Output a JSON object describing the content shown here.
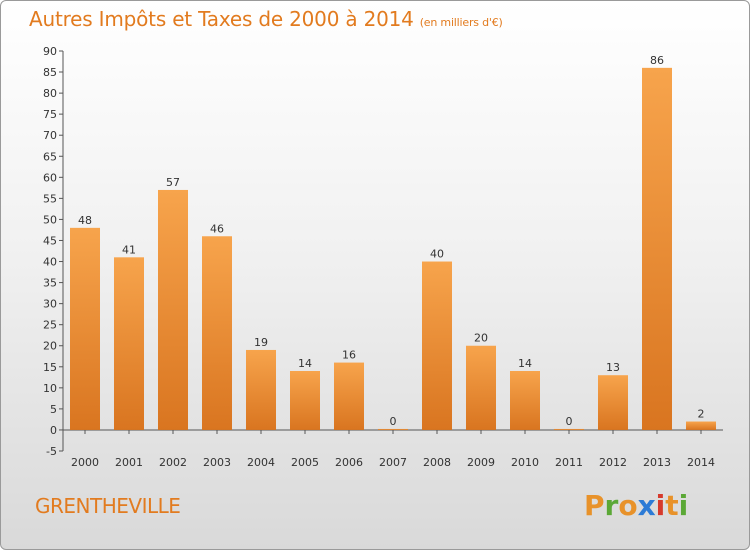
{
  "header": {
    "title": "Autres Impôts et Taxes de 2000 à 2014",
    "subtitle": "(en milliers d'€)"
  },
  "footer": {
    "commune": "GRENTHEVILLE",
    "logo": [
      "P",
      "r",
      "o",
      "x",
      "i",
      "t",
      "i"
    ]
  },
  "colors": {
    "bar_top": "#f7a44c",
    "bar_bottom": "#d97520",
    "accent": "#e27b1f",
    "logo": [
      "#e8922a",
      "#5ba836",
      "#e8922a",
      "#2c7bd6",
      "#d63a2c",
      "#e8922a",
      "#5ba836"
    ]
  },
  "chart_data": {
    "type": "bar",
    "title": "Autres Impôts et Taxes de 2000 à 2014",
    "subtitle": "(en milliers d'€)",
    "categories": [
      "2000",
      "2001",
      "2002",
      "2003",
      "2004",
      "2005",
      "2006",
      "2007",
      "2008",
      "2009",
      "2010",
      "2011",
      "2012",
      "2013",
      "2014"
    ],
    "values": [
      48,
      41,
      57,
      46,
      19,
      14,
      16,
      0,
      40,
      20,
      14,
      0,
      13,
      86,
      2
    ],
    "ylim": [
      -5,
      90
    ],
    "yticks": [
      -5,
      0,
      5,
      10,
      15,
      20,
      25,
      30,
      35,
      40,
      45,
      50,
      55,
      60,
      65,
      70,
      75,
      80,
      85,
      90
    ],
    "grid": false,
    "legend": "none"
  }
}
